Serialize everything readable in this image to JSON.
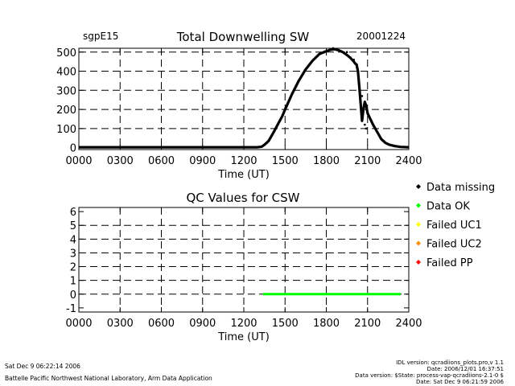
{
  "chart_data": [
    {
      "type": "scatter",
      "site_label": "sgpE15",
      "title": "Total Downwelling SW",
      "date_label": "20001224",
      "xlabel": "Time (UT)",
      "ylabel": "",
      "xlim": [
        0,
        2400
      ],
      "ylim": [
        -10,
        520
      ],
      "x_ticks": [
        "0000",
        "0300",
        "0600",
        "0900",
        "1200",
        "1500",
        "1800",
        "2100",
        "2400"
      ],
      "y_ticks": [
        "0",
        "100",
        "200",
        "300",
        "400",
        "500"
      ],
      "x_grid_values": [
        300,
        600,
        900,
        1200,
        1500,
        1800,
        2100
      ],
      "y_grid_values": [
        100,
        200,
        300,
        400,
        500
      ],
      "grid": true,
      "series": [
        {
          "color": "#000000",
          "x": [
            0,
            300,
            600,
            900,
            1200,
            1300,
            1330,
            1350,
            1380,
            1400,
            1420,
            1450,
            1480,
            1500,
            1550,
            1600,
            1650,
            1700,
            1750,
            1800,
            1830,
            1860,
            1890,
            1920,
            1950,
            1975,
            2000,
            2010,
            2020,
            2030,
            2040,
            2050,
            2060,
            2070,
            2080,
            2090,
            2100,
            2120,
            2140,
            2160,
            2180,
            2200,
            2230,
            2260,
            2300,
            2340,
            2400
          ],
          "y": [
            2,
            2,
            2,
            2,
            2,
            2,
            5,
            15,
            35,
            60,
            85,
            125,
            165,
            200,
            280,
            350,
            410,
            455,
            490,
            505,
            512,
            515,
            510,
            500,
            485,
            470,
            450,
            440,
            435,
            400,
            320,
            230,
            140,
            200,
            240,
            220,
            180,
            150,
            120,
            95,
            70,
            45,
            25,
            15,
            8,
            4,
            2
          ]
        },
        {
          "color": "#000000",
          "x": [
            1850,
            1880,
            1950,
            1990,
            2000,
            2010,
            2060,
            2070,
            2080,
            2090
          ],
          "y": [
            520,
            510,
            500,
            460,
            460,
            440,
            270,
            200,
            120,
            100
          ]
        }
      ]
    },
    {
      "type": "line",
      "title": "QC Values for CSW",
      "xlabel": "Time (UT)",
      "ylabel": "",
      "xlim": [
        0,
        2400
      ],
      "ylim": [
        -1.3,
        6.3
      ],
      "x_ticks": [
        "0000",
        "0300",
        "0600",
        "0900",
        "1200",
        "1500",
        "1800",
        "2100",
        "2400"
      ],
      "y_ticks": [
        "-1",
        "0",
        "1",
        "2",
        "3",
        "4",
        "5",
        "6"
      ],
      "x_grid_values": [
        300,
        600,
        900,
        1200,
        1500,
        1800,
        2100
      ],
      "y_grid_values": [
        1,
        2,
        3,
        4,
        5
      ],
      "grid": true,
      "series": [
        {
          "color": "#00ff00",
          "x": [
            1340,
            2340
          ],
          "y": [
            0,
            0
          ]
        }
      ],
      "legend": {
        "placement": "right",
        "entries": [
          {
            "label": "Data missing",
            "color": "#000000"
          },
          {
            "label": "Data OK",
            "color": "#00ff00"
          },
          {
            "label": "Failed UC1",
            "color": "#ffff00"
          },
          {
            "label": "Failed UC2",
            "color": "#ff8c00"
          },
          {
            "label": "Failed PP",
            "color": "#ff0000"
          }
        ]
      }
    }
  ],
  "footer": {
    "timestamp": "Sat Dec  9 06:22:14 2006",
    "organization": "Battelle Pacific Northwest National Laboratory, Arm Data Application",
    "idl_version": "IDL version: qcradiions_plots.pro,v 1.1",
    "file_date": "Date: 2006/12/01 16:37:51",
    "data_version": "Data version: $State: process-vap-qcradiions-2.1-0 $",
    "data_date": "Date: Sat Dec  9 06:21:59 2006"
  }
}
